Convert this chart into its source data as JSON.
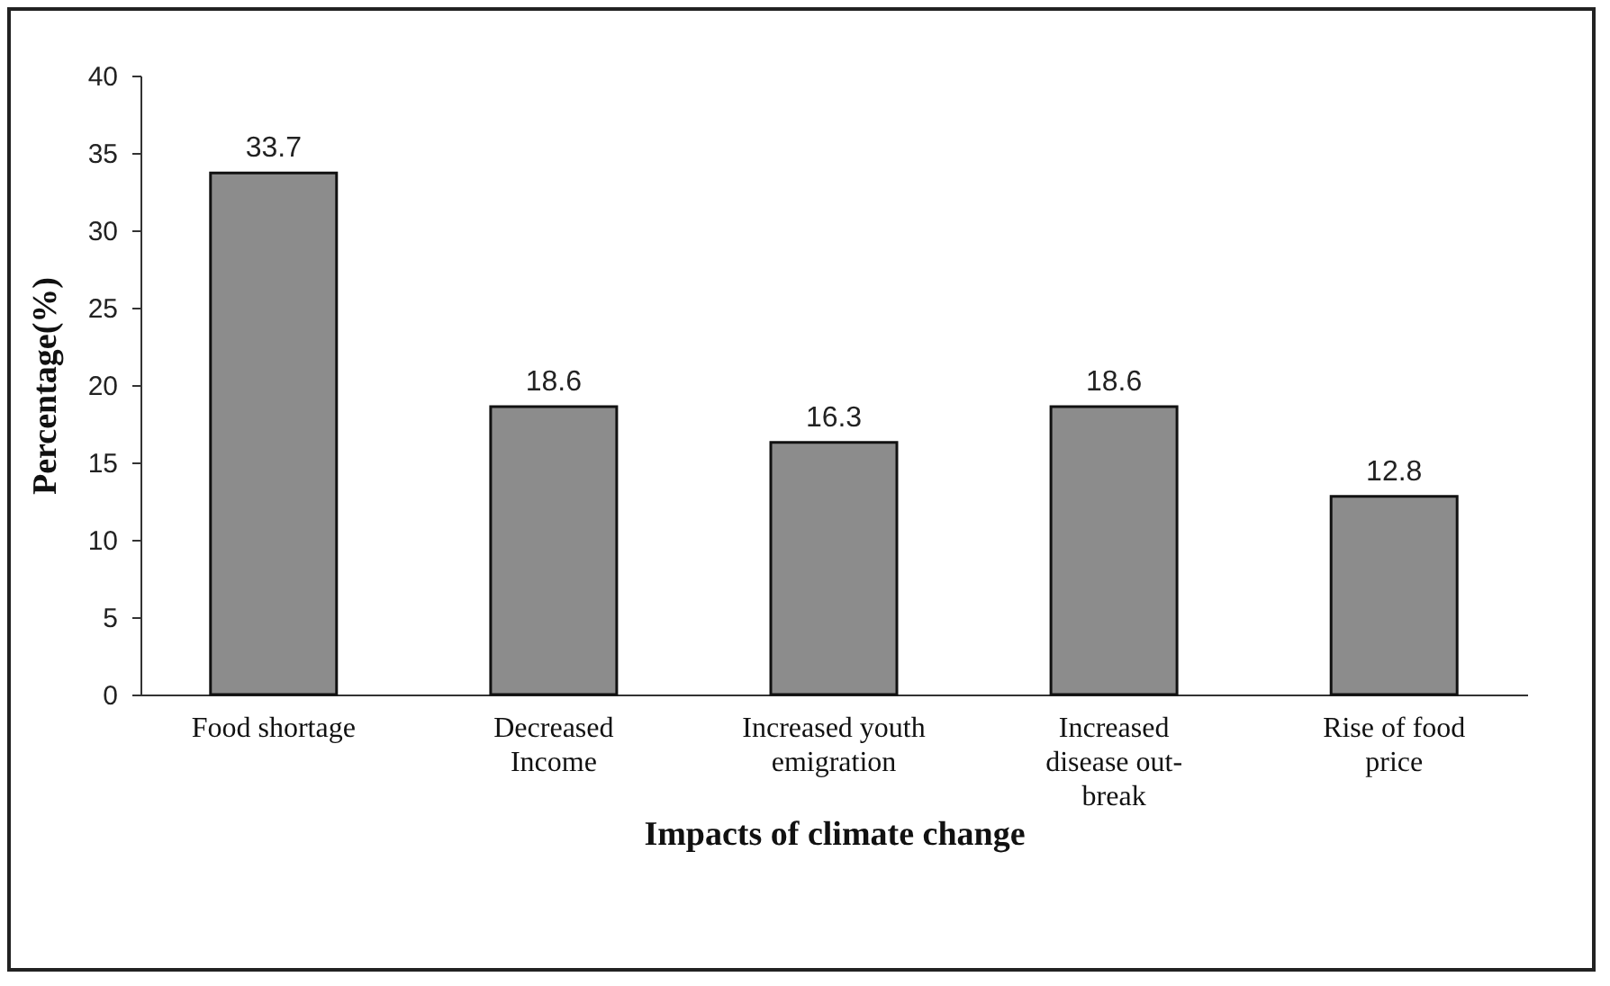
{
  "chart_data": {
    "type": "bar",
    "xlabel": "Impacts of climate change",
    "ylabel": "Percentage(%)",
    "categories": [
      "Food shortage",
      "Decreased Income",
      "Increased youth emigration",
      "Increased disease out-break",
      "Rise of food price"
    ],
    "values": [
      33.7,
      18.6,
      16.3,
      18.6,
      12.8
    ],
    "color": "#8c8c8c",
    "ylim": [
      0,
      40
    ],
    "yticks": [
      0,
      5,
      10,
      15,
      20,
      25,
      30,
      35,
      40
    ],
    "grid": false,
    "data_labels": true
  }
}
